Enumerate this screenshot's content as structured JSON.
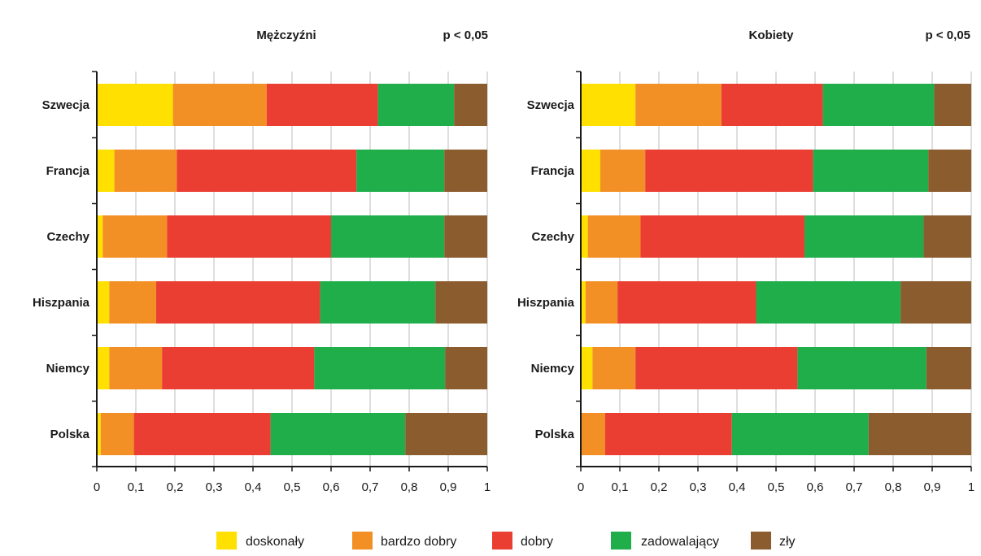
{
  "chart_data": {
    "type": "bar",
    "orientation": "horizontal",
    "stacked": true,
    "grid": true,
    "legend_position": "bottom",
    "xlim": [
      0,
      1
    ],
    "x_ticks": [
      "0",
      "0,1",
      "0,2",
      "0,3",
      "0,4",
      "0,5",
      "0,6",
      "0,7",
      "0,8",
      "0,9",
      "1"
    ],
    "legend": [
      {
        "label": "doskonały",
        "color": "#FFE000"
      },
      {
        "label": "bardzo dobry",
        "color": "#F39025"
      },
      {
        "label": "dobry",
        "color": "#EB3E33"
      },
      {
        "label": "zadowalający",
        "color": "#20AE4B"
      },
      {
        "label": "zły",
        "color": "#8B5C2E"
      }
    ],
    "panels": [
      {
        "title": "Mężczyźni",
        "significance": "p  < 0,05",
        "categories": [
          "Szwecja",
          "Francja",
          "Czechy",
          "Hiszpania",
          "Niemcy",
          "Polska"
        ],
        "values": [
          [
            0.195,
            0.24,
            0.285,
            0.195,
            0.085
          ],
          [
            0.045,
            0.16,
            0.46,
            0.225,
            0.11
          ],
          [
            0.015,
            0.165,
            0.42,
            0.29,
            0.11
          ],
          [
            0.032,
            0.12,
            0.42,
            0.295,
            0.133
          ],
          [
            0.032,
            0.135,
            0.39,
            0.335,
            0.108
          ],
          [
            0.01,
            0.085,
            0.35,
            0.345,
            0.21
          ]
        ]
      },
      {
        "title": "Kobiety",
        "significance": "p  < 0,05",
        "categories": [
          "Szwecja",
          "Francja",
          "Czechy",
          "Hiszpania",
          "Niemcy",
          "Polska"
        ],
        "values": [
          [
            0.14,
            0.22,
            0.26,
            0.285,
            0.095
          ],
          [
            0.05,
            0.115,
            0.43,
            0.295,
            0.11
          ],
          [
            0.018,
            0.135,
            0.42,
            0.305,
            0.122
          ],
          [
            0.012,
            0.082,
            0.355,
            0.37,
            0.181
          ],
          [
            0.03,
            0.11,
            0.415,
            0.33,
            0.115
          ],
          [
            0.0,
            0.062,
            0.325,
            0.35,
            0.263
          ]
        ]
      }
    ]
  }
}
